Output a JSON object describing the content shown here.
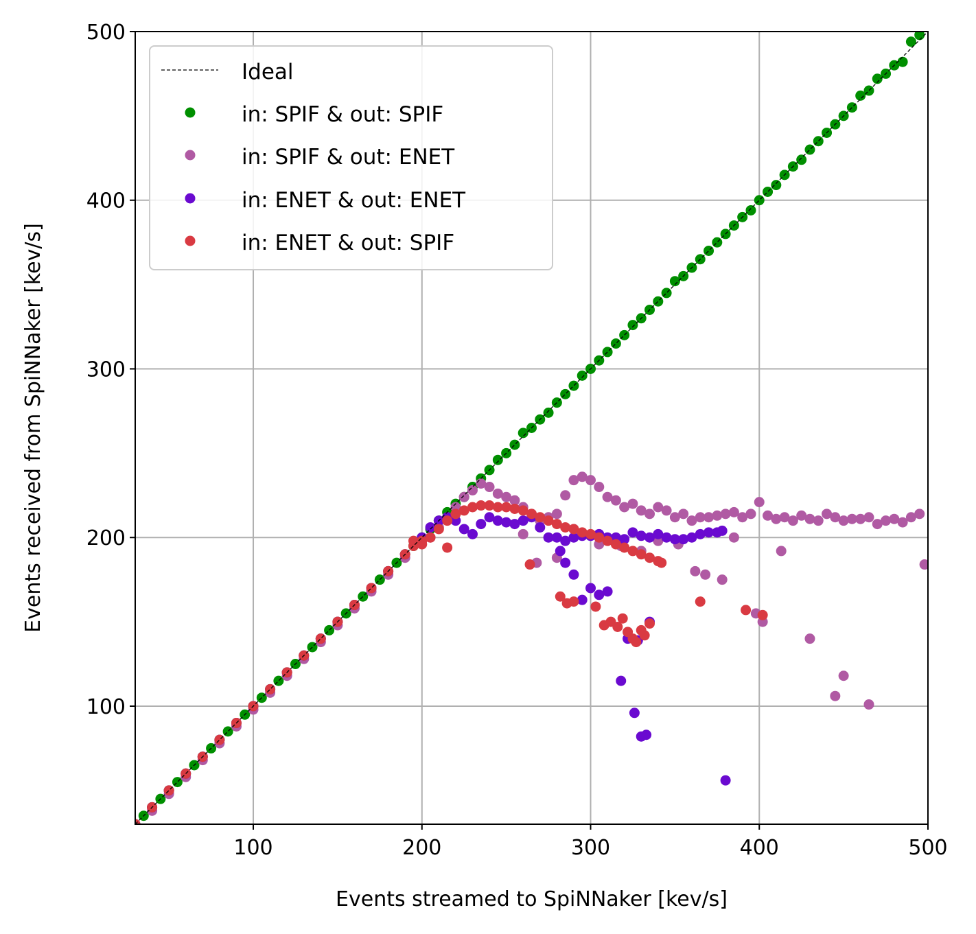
{
  "chart_data": {
    "type": "scatter",
    "xlabel": "Events streamed to SpiNNaker [kev/s]",
    "ylabel": "Events received from SpiNNaker [kev/s]",
    "xlim": [
      30,
      500
    ],
    "ylim": [
      30,
      500
    ],
    "xticks": [
      100,
      200,
      300,
      400,
      500
    ],
    "yticks": [
      100,
      200,
      300,
      400,
      500
    ],
    "grid": true,
    "legend_position": "top-left",
    "ideal_line": {
      "name": "Ideal",
      "color": "#000000",
      "style": "dashed",
      "x": [
        30,
        500
      ],
      "y": [
        30,
        500
      ]
    },
    "series": [
      {
        "name": "in: SPIF & out: SPIF",
        "color": "#008f00",
        "x": [
          30,
          35,
          40,
          45,
          50,
          55,
          60,
          65,
          70,
          75,
          80,
          85,
          90,
          95,
          100,
          105,
          110,
          115,
          120,
          125,
          130,
          135,
          140,
          145,
          150,
          155,
          160,
          165,
          170,
          175,
          180,
          185,
          190,
          195,
          200,
          205,
          210,
          215,
          220,
          225,
          230,
          235,
          240,
          245,
          250,
          255,
          260,
          265,
          270,
          275,
          280,
          285,
          290,
          295,
          300,
          305,
          310,
          315,
          320,
          325,
          330,
          335,
          340,
          345,
          350,
          355,
          360,
          365,
          370,
          375,
          380,
          385,
          390,
          395,
          400,
          405,
          410,
          415,
          420,
          425,
          430,
          435,
          440,
          445,
          450,
          455,
          460,
          465,
          470,
          475,
          480,
          485,
          490,
          495
        ],
        "y": [
          30,
          35,
          40,
          45,
          50,
          55,
          60,
          65,
          70,
          75,
          80,
          85,
          90,
          95,
          100,
          105,
          110,
          115,
          120,
          125,
          130,
          135,
          140,
          145,
          150,
          155,
          160,
          165,
          170,
          175,
          180,
          185,
          190,
          195,
          200,
          205,
          210,
          215,
          220,
          224,
          230,
          235,
          240,
          246,
          250,
          255,
          262,
          265,
          270,
          274,
          280,
          285,
          290,
          296,
          300,
          305,
          310,
          315,
          320,
          326,
          330,
          335,
          340,
          345,
          352,
          355,
          360,
          365,
          370,
          375,
          380,
          385,
          390,
          394,
          400,
          405,
          409,
          415,
          420,
          424,
          430,
          435,
          440,
          445,
          450,
          455,
          462,
          465,
          472,
          475,
          480,
          482,
          494,
          498
        ]
      },
      {
        "name": "in: SPIF & out: ENET",
        "color": "#b05aa3",
        "x": [
          30,
          40,
          50,
          60,
          70,
          80,
          90,
          100,
          110,
          120,
          130,
          140,
          150,
          160,
          170,
          180,
          190,
          200,
          205,
          210,
          215,
          220,
          225,
          230,
          235,
          240,
          245,
          250,
          255,
          260,
          265,
          270,
          275,
          280,
          285,
          290,
          295,
          300,
          305,
          310,
          315,
          320,
          325,
          330,
          335,
          340,
          345,
          350,
          355,
          360,
          365,
          370,
          375,
          380,
          385,
          390,
          395,
          400,
          405,
          410,
          415,
          420,
          425,
          430,
          435,
          440,
          445,
          450,
          455,
          460,
          465,
          470,
          475,
          480,
          485,
          490,
          495,
          260,
          268,
          280,
          290,
          305,
          318,
          330,
          340,
          352,
          362,
          368,
          378,
          385,
          398,
          402,
          413,
          430,
          445,
          450,
          465,
          498
        ],
        "y": [
          28,
          38,
          48,
          58,
          68,
          78,
          88,
          98,
          108,
          118,
          128,
          138,
          148,
          158,
          168,
          178,
          188,
          198,
          200,
          206,
          212,
          218,
          224,
          228,
          232,
          230,
          226,
          224,
          222,
          218,
          214,
          210,
          212,
          214,
          225,
          234,
          236,
          234,
          230,
          224,
          222,
          218,
          220,
          216,
          214,
          218,
          216,
          212,
          214,
          210,
          212,
          212,
          213,
          214,
          215,
          212,
          214,
          221,
          213,
          211,
          212,
          210,
          213,
          211,
          210,
          214,
          212,
          210,
          211,
          211,
          212,
          208,
          210,
          211,
          209,
          212,
          214,
          202,
          185,
          188,
          205,
          196,
          195,
          192,
          198,
          196,
          180,
          178,
          175,
          200,
          155,
          150,
          192,
          140,
          106,
          118,
          101,
          184
        ]
      },
      {
        "name": "in: ENET & out: ENET",
        "color": "#6a0ad0",
        "x": [
          30,
          40,
          50,
          60,
          70,
          80,
          90,
          100,
          110,
          120,
          130,
          140,
          150,
          160,
          170,
          180,
          190,
          200,
          205,
          210,
          215,
          220,
          225,
          230,
          235,
          240,
          245,
          250,
          255,
          260,
          265,
          270,
          275,
          280,
          285,
          290,
          295,
          300,
          305,
          310,
          315,
          320,
          325,
          330,
          335,
          340,
          345,
          350,
          355,
          360,
          365,
          370,
          375,
          378,
          282,
          285,
          290,
          295,
          300,
          305,
          310,
          318,
          322,
          326,
          328,
          330,
          333,
          335,
          380
        ],
        "y": [
          30,
          40,
          50,
          60,
          70,
          80,
          90,
          100,
          110,
          120,
          130,
          140,
          150,
          160,
          170,
          180,
          190,
          200,
          206,
          210,
          212,
          210,
          205,
          202,
          208,
          212,
          210,
          209,
          208,
          210,
          212,
          206,
          200,
          200,
          198,
          200,
          201,
          201,
          202,
          200,
          200,
          199,
          203,
          201,
          200,
          202,
          200,
          199,
          199,
          200,
          202,
          203,
          203,
          204,
          192,
          185,
          178,
          163,
          170,
          166,
          168,
          115,
          140,
          96,
          139,
          82,
          83,
          150,
          56
        ]
      },
      {
        "name": "in: ENET & out: SPIF",
        "color": "#d93a42",
        "x": [
          30,
          40,
          50,
          60,
          70,
          80,
          90,
          100,
          110,
          120,
          130,
          140,
          150,
          160,
          170,
          180,
          190,
          195,
          200,
          205,
          210,
          215,
          220,
          225,
          230,
          235,
          240,
          245,
          250,
          255,
          260,
          265,
          270,
          275,
          280,
          285,
          290,
          295,
          300,
          305,
          310,
          315,
          320,
          325,
          330,
          335,
          340,
          342,
          195,
          200,
          215,
          264,
          282,
          286,
          290,
          303,
          308,
          312,
          316,
          319,
          322,
          325,
          327,
          330,
          332,
          335,
          365,
          392,
          402
        ],
        "y": [
          30,
          40,
          50,
          60,
          70,
          80,
          90,
          100,
          110,
          120,
          130,
          140,
          150,
          160,
          170,
          180,
          190,
          195,
          198,
          200,
          205,
          210,
          214,
          216,
          218,
          219,
          219,
          218,
          218,
          217,
          216,
          214,
          212,
          210,
          208,
          206,
          205,
          203,
          202,
          200,
          198,
          196,
          194,
          192,
          190,
          188,
          186,
          185,
          198,
          196,
          194,
          184,
          165,
          161,
          162,
          159,
          148,
          150,
          147,
          152,
          144,
          140,
          138,
          145,
          142,
          149,
          162,
          157,
          154
        ]
      }
    ]
  }
}
